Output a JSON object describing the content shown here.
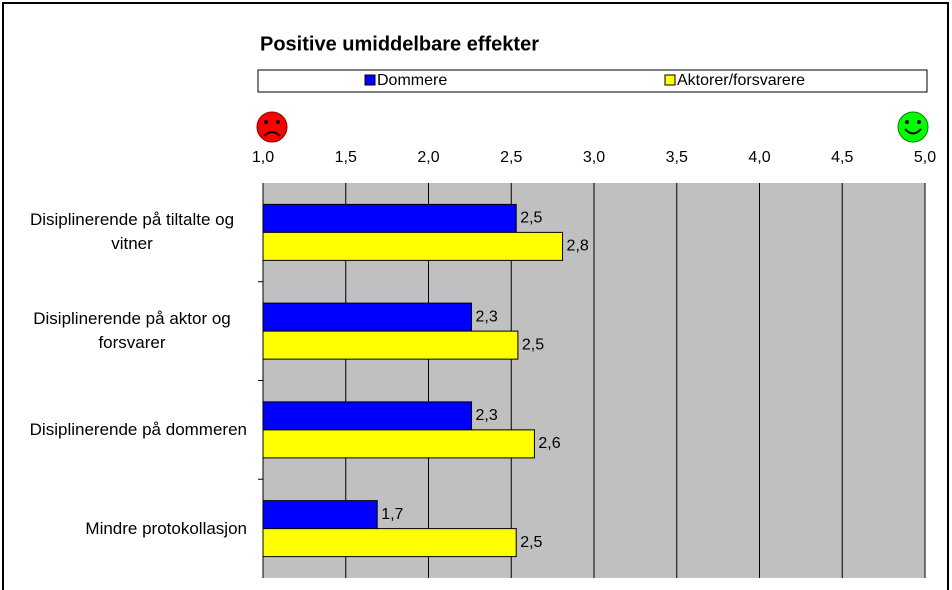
{
  "chart_data": {
    "type": "hbar",
    "title": "Positive umiddelbare effekter",
    "categories": [
      "Disiplinerende på tiltalte og vitner",
      "Disiplinerende på aktor og forsvarer",
      "Disiplinerende på dommeren",
      "Mindre protokollasjon"
    ],
    "series": [
      {
        "name": "Dommere",
        "color": "#0000ff",
        "values": [
          2.53,
          2.26,
          2.26,
          1.69
        ],
        "value_labels": [
          "2,5",
          "2,3",
          "2,3",
          "1,7"
        ]
      },
      {
        "name": "Aktorer/forsvarere",
        "color": "#ffff00",
        "values": [
          2.81,
          2.54,
          2.64,
          2.53
        ],
        "value_labels": [
          "2,8",
          "2,5",
          "2,6",
          "2,5"
        ]
      }
    ],
    "xlim": [
      1,
      5
    ],
    "xticks": [
      {
        "value": 1,
        "label": "1,0"
      },
      {
        "value": 1.5,
        "label": "1,5"
      },
      {
        "value": 2,
        "label": "2,0"
      },
      {
        "value": 2.5,
        "label": "2,5"
      },
      {
        "value": 3,
        "label": "3,0"
      },
      {
        "value": 3.5,
        "label": "3,5"
      },
      {
        "value": 4,
        "label": "4,0"
      },
      {
        "value": 4.5,
        "label": "4,5"
      },
      {
        "value": 5,
        "label": "5,0"
      }
    ],
    "grid": true,
    "plot_background": "#c0c0c0"
  }
}
